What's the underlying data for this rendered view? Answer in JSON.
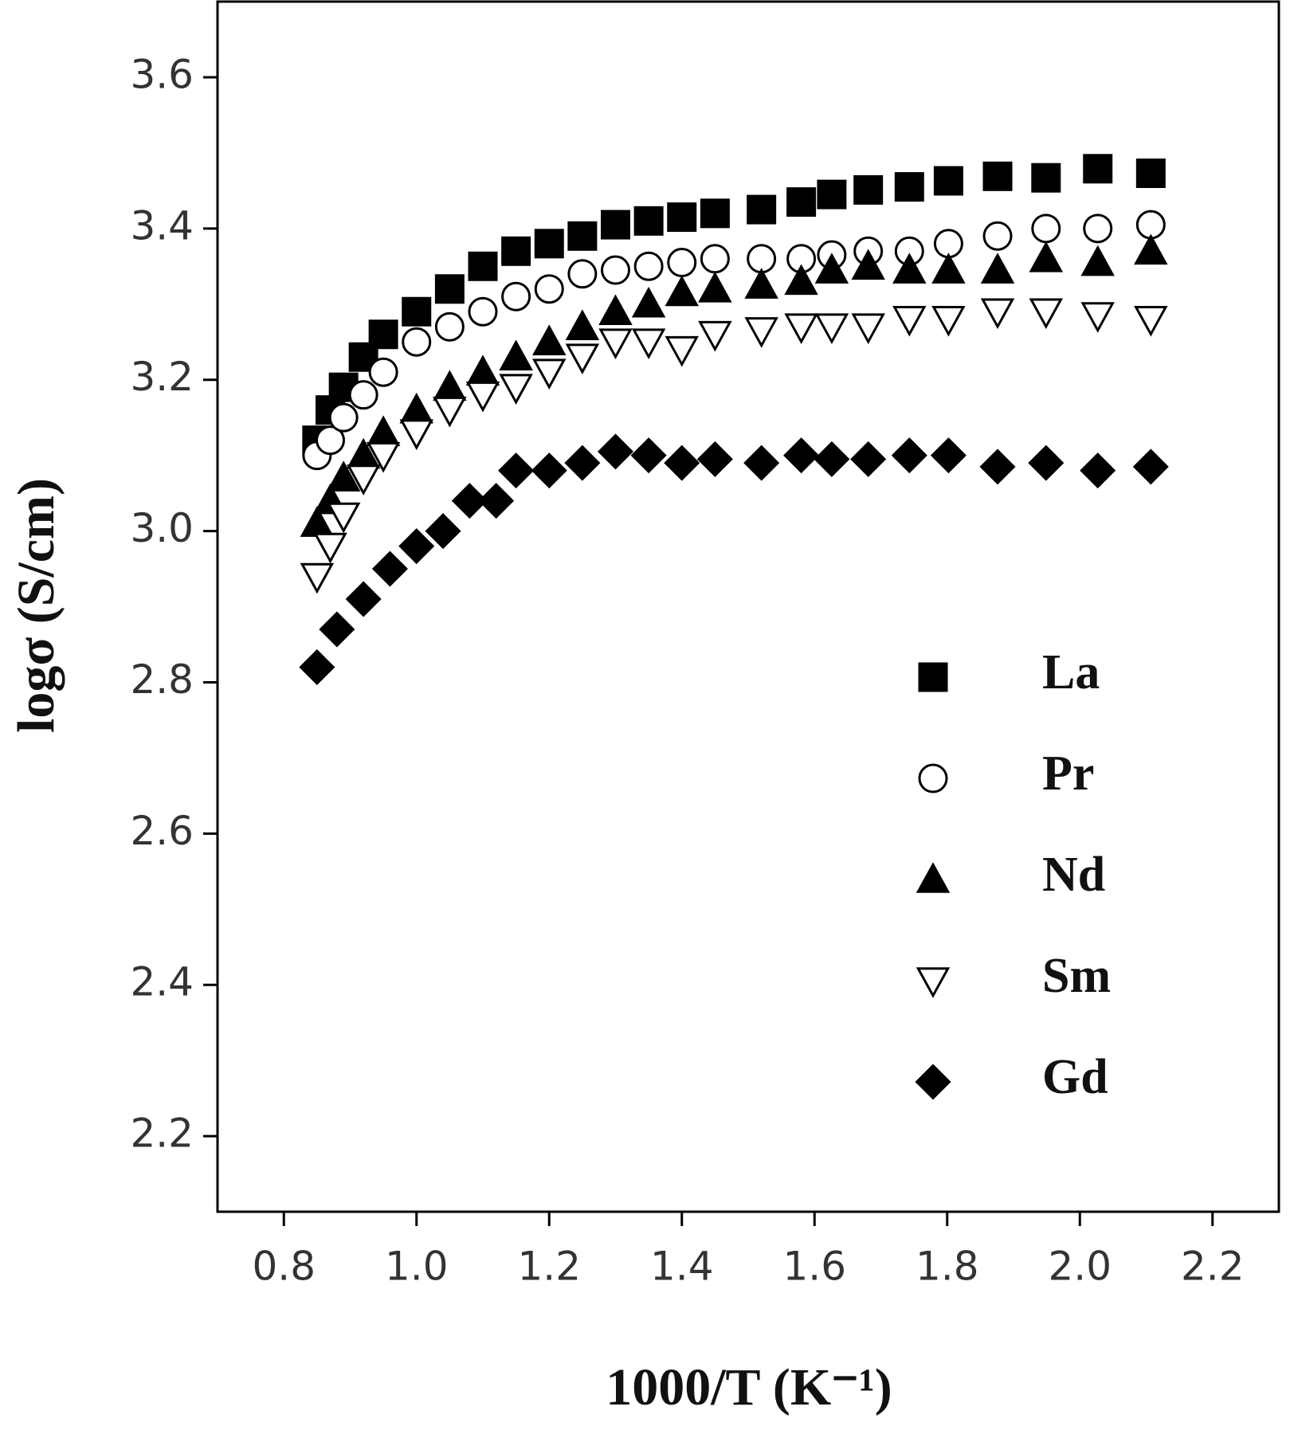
{
  "chart_data": {
    "type": "scatter",
    "xlabel": "1000/T (K⁻¹)",
    "ylabel": "logσ (S/cm)",
    "xlim": [
      0.7,
      2.3
    ],
    "xticks": [
      {
        "value": 0.8,
        "label": "0.8"
      },
      {
        "value": 1.0,
        "label": "1.0"
      },
      {
        "value": 1.2,
        "label": "1.2"
      },
      {
        "value": 1.4,
        "label": "1.4"
      },
      {
        "value": 1.6,
        "label": "1.6"
      },
      {
        "value": 1.8,
        "label": "1.8"
      },
      {
        "value": 2.0,
        "label": "2.0"
      },
      {
        "value": 2.2,
        "label": "2.2"
      }
    ],
    "ylim": [
      2.1,
      3.7
    ],
    "yticks": [
      {
        "value": 2.2,
        "label": "2.2"
      },
      {
        "value": 2.4,
        "label": "2.4"
      },
      {
        "value": 2.6,
        "label": "2.6"
      },
      {
        "value": 2.8,
        "label": "2.8"
      },
      {
        "value": 3.0,
        "label": "3.0"
      },
      {
        "value": 3.2,
        "label": "3.2"
      },
      {
        "value": 3.4,
        "label": "3.4"
      },
      {
        "value": 3.6,
        "label": "3.6"
      }
    ],
    "grid": false,
    "legend": "lower right",
    "series": [
      {
        "name": "La",
        "color": "#000000",
        "marker": "square",
        "filled": true,
        "x": [
          0.85,
          0.87,
          0.89,
          0.92,
          0.95,
          1.0,
          1.05,
          1.1,
          1.15,
          1.2,
          1.25,
          1.3,
          1.35,
          1.4,
          1.45,
          1.52,
          1.58,
          1.626,
          1.681,
          1.743,
          1.802,
          1.876,
          1.949,
          2.027,
          2.107
        ],
        "values": [
          3.12,
          3.16,
          3.19,
          3.23,
          3.26,
          3.29,
          3.32,
          3.35,
          3.37,
          3.38,
          3.39,
          3.405,
          3.41,
          3.415,
          3.42,
          3.425,
          3.435,
          3.445,
          3.451,
          3.455,
          3.463,
          3.469,
          3.467,
          3.479,
          3.473
        ]
      },
      {
        "name": "Pr",
        "color": "#000000",
        "marker": "circle",
        "filled": false,
        "x": [
          0.85,
          0.87,
          0.89,
          0.92,
          0.95,
          1.0,
          1.05,
          1.1,
          1.15,
          1.2,
          1.25,
          1.3,
          1.35,
          1.4,
          1.45,
          1.52,
          1.58,
          1.626,
          1.681,
          1.743,
          1.802,
          1.876,
          1.949,
          2.027,
          2.107
        ],
        "values": [
          3.1,
          3.12,
          3.15,
          3.18,
          3.21,
          3.25,
          3.27,
          3.29,
          3.31,
          3.32,
          3.34,
          3.345,
          3.35,
          3.355,
          3.36,
          3.36,
          3.36,
          3.365,
          3.37,
          3.37,
          3.38,
          3.39,
          3.4,
          3.4,
          3.405
        ]
      },
      {
        "name": "Nd",
        "color": "#000000",
        "marker": "triangle-up",
        "filled": true,
        "x": [
          0.85,
          0.87,
          0.89,
          0.92,
          0.95,
          1.0,
          1.05,
          1.1,
          1.15,
          1.2,
          1.25,
          1.3,
          1.35,
          1.4,
          1.45,
          1.52,
          1.58,
          1.626,
          1.681,
          1.743,
          1.802,
          1.876,
          1.949,
          2.027,
          2.107
        ],
        "values": [
          3.01,
          3.04,
          3.07,
          3.1,
          3.13,
          3.16,
          3.19,
          3.21,
          3.23,
          3.25,
          3.27,
          3.29,
          3.3,
          3.315,
          3.32,
          3.325,
          3.33,
          3.345,
          3.35,
          3.345,
          3.345,
          3.345,
          3.36,
          3.355,
          3.37
        ]
      },
      {
        "name": "Sm",
        "color": "#000000",
        "marker": "triangle-down",
        "filled": false,
        "x": [
          0.85,
          0.87,
          0.89,
          0.92,
          0.95,
          1.0,
          1.05,
          1.1,
          1.15,
          1.2,
          1.25,
          1.3,
          1.35,
          1.4,
          1.45,
          1.52,
          1.58,
          1.626,
          1.681,
          1.743,
          1.802,
          1.876,
          1.949,
          2.027,
          2.107
        ],
        "values": [
          2.94,
          2.98,
          3.02,
          3.07,
          3.1,
          3.13,
          3.16,
          3.18,
          3.19,
          3.21,
          3.23,
          3.25,
          3.25,
          3.24,
          3.26,
          3.265,
          3.27,
          3.27,
          3.27,
          3.28,
          3.28,
          3.29,
          3.29,
          3.285,
          3.28
        ]
      },
      {
        "name": "Gd",
        "color": "#000000",
        "marker": "diamond",
        "filled": true,
        "x": [
          0.85,
          0.88,
          0.92,
          0.96,
          1.0,
          1.04,
          1.08,
          1.12,
          1.15,
          1.2,
          1.25,
          1.3,
          1.35,
          1.4,
          1.45,
          1.52,
          1.58,
          1.626,
          1.681,
          1.743,
          1.802,
          1.876,
          1.949,
          2.027,
          2.107
        ],
        "values": [
          2.82,
          2.87,
          2.91,
          2.95,
          2.98,
          3.0,
          3.04,
          3.04,
          3.08,
          3.08,
          3.09,
          3.105,
          3.1,
          3.09,
          3.095,
          3.09,
          3.1,
          3.095,
          3.095,
          3.1,
          3.1,
          3.085,
          3.09,
          3.08,
          3.085
        ]
      }
    ]
  }
}
